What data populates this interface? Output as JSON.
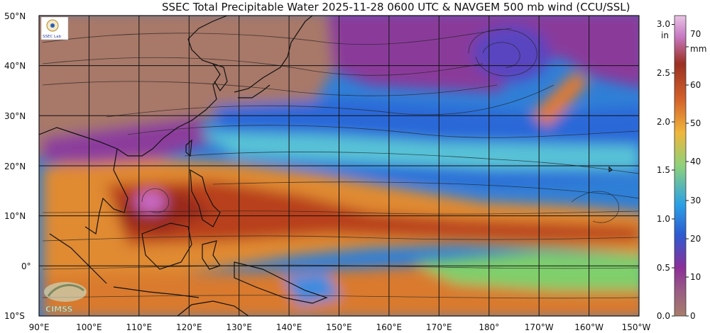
{
  "title": "SSEC Total Precipitable Water  2025-11-28 0600 UTC & NAVGEM 500 mb wind (CCU/SSL)",
  "logos": {
    "ssec_lab": "SSEC Lab",
    "cimss": "CIMSS"
  },
  "map": {
    "lat_labels": [
      "50°N",
      "40°N",
      "30°N",
      "20°N",
      "10°N",
      "0°",
      "10°S"
    ],
    "lon_labels": [
      "90°E",
      "100°E",
      "110°E",
      "120°E",
      "130°E",
      "140°E",
      "150°E",
      "160°E",
      "170°E",
      "180°",
      "170°W",
      "160°W",
      "150°W"
    ]
  },
  "colorbar": {
    "in_unit": "in",
    "mm_unit": "mm",
    "in_ticks": [
      "3.0",
      "2.5",
      "2.0",
      "1.5",
      "1.0",
      "0.5",
      "0.0"
    ],
    "mm_ticks": [
      "70",
      "60",
      "50",
      "40",
      "30",
      "20",
      "10",
      "0"
    ],
    "colors": [
      "#a87d6a",
      "#8c2f98",
      "#2d5bd1",
      "#2aa0e6",
      "#8ed17b",
      "#f0b73c",
      "#d4622a",
      "#9b2f22",
      "#c779c3",
      "#e8c4e4"
    ]
  }
}
